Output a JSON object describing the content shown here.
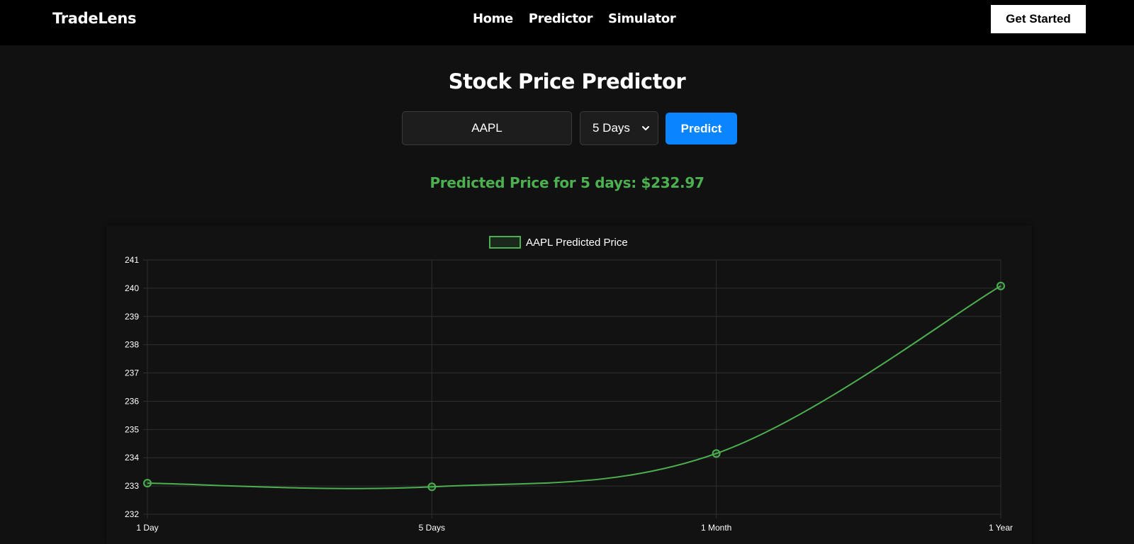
{
  "navbar": {
    "brand": "TradeLens",
    "links": [
      "Home",
      "Predictor",
      "Simulator"
    ],
    "cta_label": "Get Started"
  },
  "main": {
    "title": "Stock Price Predictor",
    "ticker_input_value": "AAPL",
    "horizon_selected": "5 Days",
    "predict_label": "Predict",
    "result_text": "Predicted Price for 5 days: $232.97"
  },
  "colors": {
    "accent_green": "#4caf50",
    "button_blue": "#0a84ff",
    "background": "#111111",
    "navbar": "#000000"
  },
  "icons": {
    "select_chevron": "chevron-down-icon"
  },
  "chart_data": {
    "type": "line",
    "categories": [
      "1 Day",
      "5 Days",
      "1 Month",
      "1 Year"
    ],
    "series": [
      {
        "name": "AAPL Predicted Price",
        "values": [
          233.1,
          232.97,
          234.15,
          240.08
        ],
        "color": "#4caf50"
      }
    ],
    "title": "",
    "xlabel": "",
    "ylabel": "",
    "ylim": [
      232,
      241
    ],
    "yticks": [
      "241",
      "240",
      "239",
      "238",
      "237",
      "236",
      "235",
      "234",
      "233",
      "232"
    ],
    "grid": true,
    "legend": "top-center"
  }
}
